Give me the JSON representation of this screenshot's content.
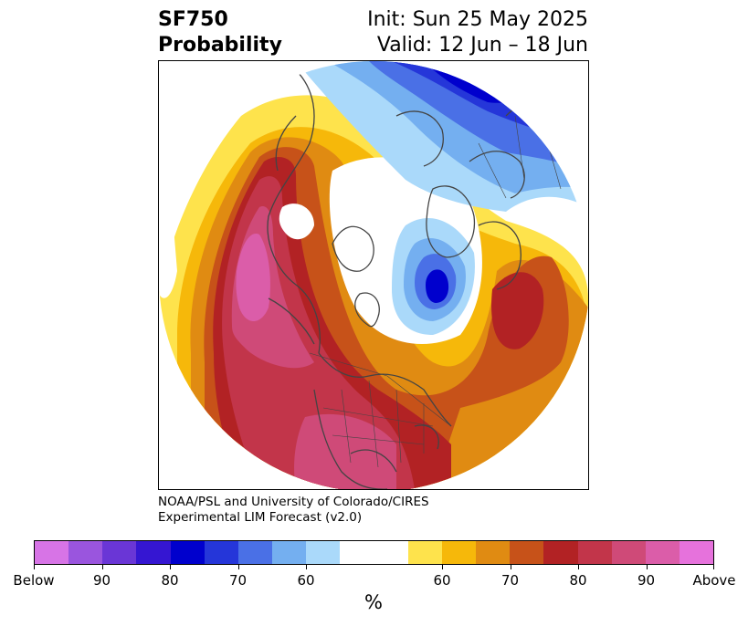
{
  "title": {
    "product": "SF750",
    "subtitle": "Probability",
    "init": "Init: Sun 25 May 2025",
    "valid": "Valid: 12 Jun – 18 Jun"
  },
  "credit": {
    "line1": "NOAA/PSL and University of Colorado/CIRES",
    "line2": "Experimental LIM Forecast (v2.0)"
  },
  "colorbar": {
    "unit": "%",
    "colors": [
      "#d774e6",
      "#9a55de",
      "#6a36d6",
      "#3516d2",
      "#0000cd",
      "#2536d9",
      "#4a70e6",
      "#74aff0",
      "#aad9fa",
      "#ffffff",
      "#ffffff",
      "#fee34c",
      "#f6b80a",
      "#e08b12",
      "#c75219",
      "#b22224",
      "#c2354a",
      "#cf4a78",
      "#db5da9",
      "#e672dc"
    ],
    "labels": [
      "Below",
      "90",
      "80",
      "70",
      "60",
      "60",
      "70",
      "80",
      "90",
      "Above"
    ]
  },
  "colors": {
    "coastline": "#444444",
    "cold_strong": "#0000cd",
    "warm_strong": "#b22224",
    "above_extreme": "#db5da9"
  }
}
